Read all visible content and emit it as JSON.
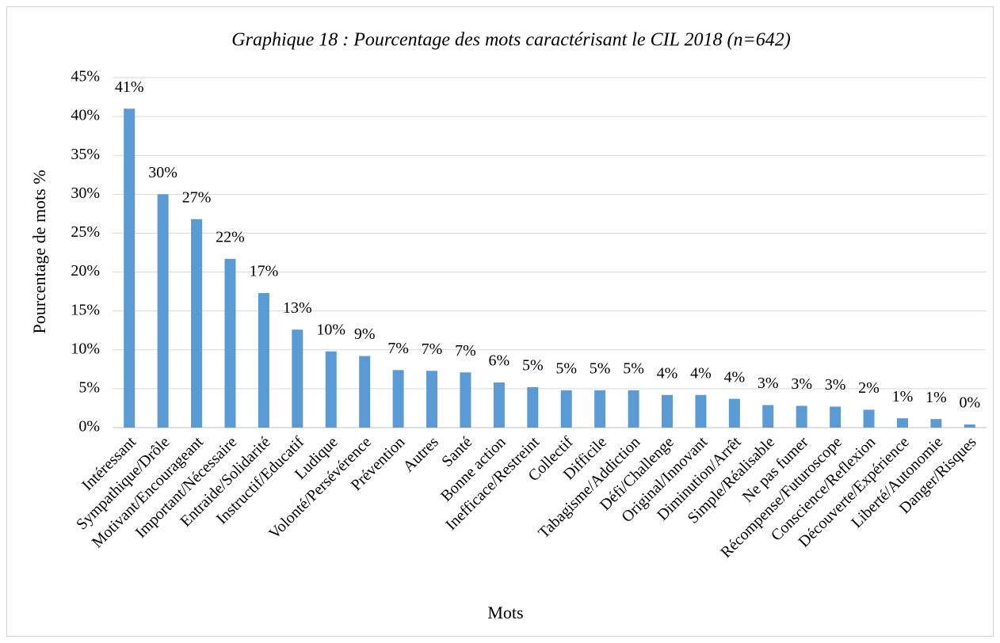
{
  "chart_data": {
    "type": "bar",
    "title": "Graphique 18 : Pourcentage des mots caractérisant le CIL 2018 (n=642)",
    "x_label": "Mots",
    "y_label": "Pourcentage de mots %",
    "categories": [
      "Intéressant",
      "Sympathique/Drôle",
      "Motivant/Encourageant",
      "Important/Nécessaire",
      "Entraide/Solidarité",
      "Instructif/Educatif",
      "Ludique",
      "Volonté/Persévérence",
      "Prévention",
      "Autres",
      "Santé",
      "Bonne action",
      "Inefficace/Restreint",
      "Collectif",
      "Difficile",
      "Tabagisme/Addiction",
      "Défi/Challenge",
      "Original/Innovant",
      "Diminution/Arrêt",
      "Simple/Réalisable",
      "Ne pas fumer",
      "Récompense/Futuroscope",
      "Conscience/Reflexion",
      "Découverte/Expérience",
      "Liberté/Autonomie",
      "Danger/Risques"
    ],
    "values": [
      41,
      30,
      26.8,
      21.7,
      17.3,
      12.6,
      9.8,
      9.2,
      7.4,
      7.3,
      7.1,
      5.8,
      5.2,
      4.8,
      4.8,
      4.8,
      4.2,
      4.2,
      3.7,
      2.9,
      2.8,
      2.7,
      2.3,
      1.2,
      1.1,
      0.4
    ],
    "value_labels": [
      "41%",
      "30%",
      "27%",
      "22%",
      "17%",
      "13%",
      "10%",
      "9%",
      "7%",
      "7%",
      "7%",
      "6%",
      "5%",
      "5%",
      "5%",
      "5%",
      "4%",
      "4%",
      "4%",
      "3%",
      "3%",
      "3%",
      "2%",
      "1%",
      "1%",
      "0%"
    ],
    "color": "#5b9bd5",
    "ylim": [
      0,
      45
    ],
    "yticks": [
      {
        "value": 0,
        "label": "0%"
      },
      {
        "value": 5,
        "label": "5%"
      },
      {
        "value": 10,
        "label": "10%"
      },
      {
        "value": 15,
        "label": "15%"
      },
      {
        "value": 20,
        "label": "20%"
      },
      {
        "value": 25,
        "label": "25%"
      },
      {
        "value": 30,
        "label": "30%"
      },
      {
        "value": 35,
        "label": "35%"
      },
      {
        "value": 40,
        "label": "40%"
      },
      {
        "value": 45,
        "label": "45%"
      }
    ],
    "grid": true
  }
}
